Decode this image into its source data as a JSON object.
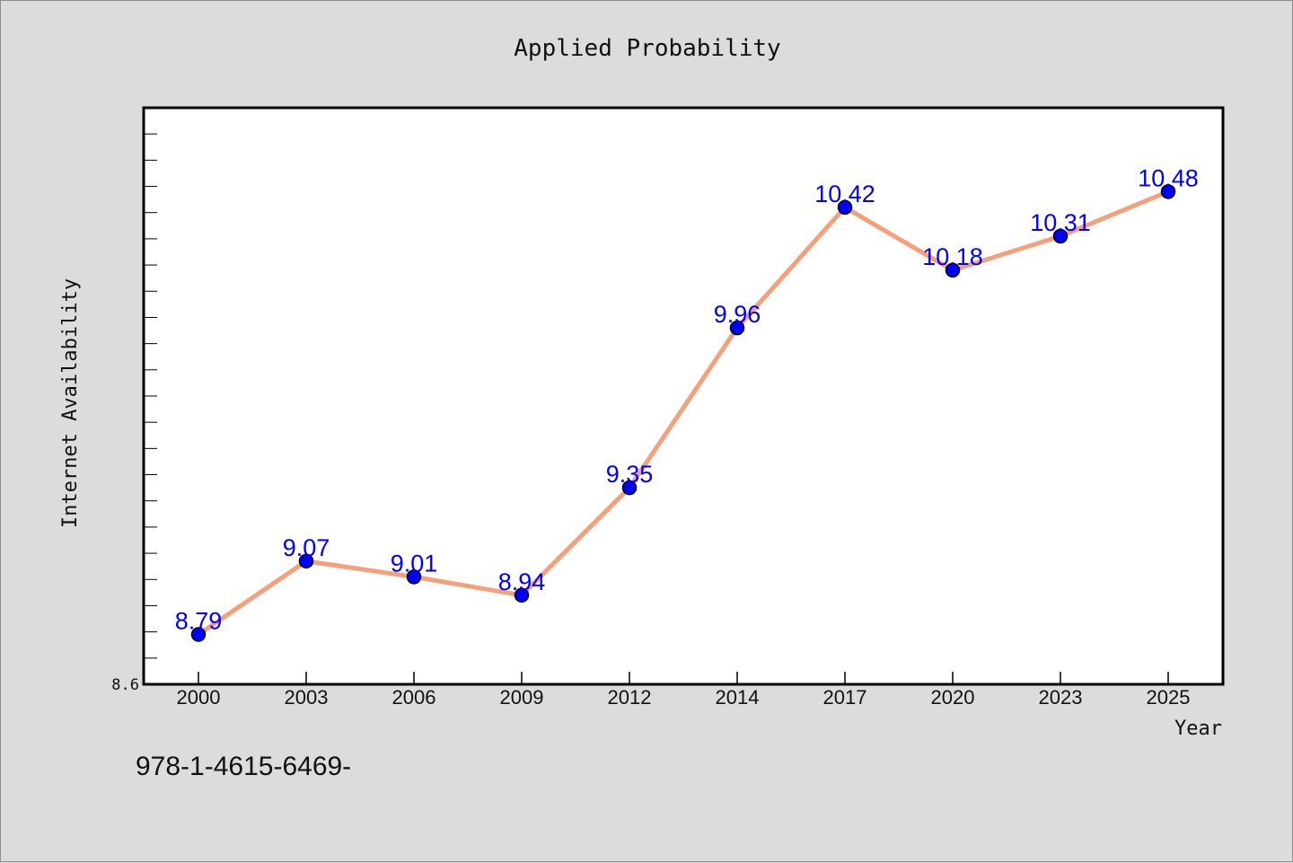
{
  "chart_data": {
    "type": "line",
    "title": "Applied Probability",
    "xlabel": "Year",
    "ylabel": "Internet Availability",
    "categories": [
      "2000",
      "2003",
      "2006",
      "2009",
      "2012",
      "2014",
      "2017",
      "2020",
      "2023",
      "2025"
    ],
    "values": [
      8.79,
      9.07,
      9.01,
      8.94,
      9.35,
      9.96,
      10.42,
      10.18,
      10.31,
      10.48
    ],
    "data_labels": [
      "8.79",
      "9.07",
      "9.01",
      "8.94",
      "9.35",
      "9.96",
      "10.42",
      "10.18",
      "10.31",
      "10.48"
    ],
    "ylim": [
      8.6,
      10.8
    ],
    "y_tick_labels": [
      "8.6"
    ],
    "grid": false,
    "legend": "none",
    "colors": {
      "line": "#f5a07a",
      "marker": "#0000ff",
      "label": "#0000ff",
      "background": "#dcdcdc",
      "plot_background": "#ffffff"
    }
  },
  "footer": {
    "isbn": "978-1-4615-6469-"
  }
}
